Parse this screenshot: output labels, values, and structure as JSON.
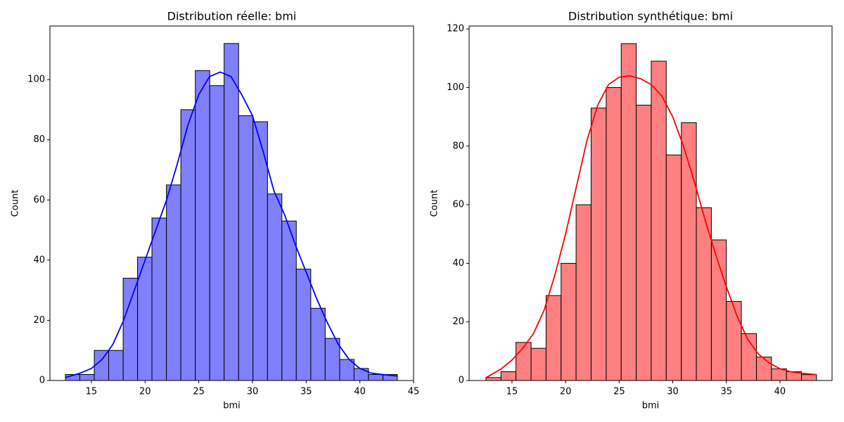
{
  "chart_data": [
    {
      "type": "histogram",
      "title": "Distribution réelle: bmi",
      "xlabel": "bmi",
      "ylabel": "Count",
      "bins": [
        12.58,
        13.92,
        15.27,
        16.61,
        17.96,
        19.3,
        20.64,
        21.99,
        23.33,
        24.68,
        26.02,
        27.36,
        28.71,
        30.05,
        31.4,
        32.74,
        34.08,
        35.43,
        36.77,
        38.12,
        39.46,
        40.8,
        42.15,
        43.49
      ],
      "counts": [
        2,
        2,
        10,
        10,
        34,
        41,
        54,
        65,
        90,
        103,
        98,
        112,
        88,
        86,
        62,
        53,
        37,
        24,
        14,
        7,
        4,
        2,
        2
      ],
      "color": "#8080ff",
      "edgecolor": "#000000",
      "kde": {
        "color": "#0000ff",
        "x": [
          12.6,
          14,
          15,
          16,
          17,
          18,
          19,
          20,
          21,
          22,
          23,
          24,
          25,
          26,
          27,
          28,
          29,
          30,
          31,
          32,
          33,
          34,
          35,
          36,
          37,
          38,
          39,
          40,
          41,
          42,
          43.5
        ],
        "y": [
          1,
          2.5,
          4,
          7,
          12,
          20,
          30,
          40,
          50,
          60,
          72,
          85,
          95,
          101,
          102.5,
          101,
          95,
          88,
          76,
          63,
          55,
          45,
          36,
          27,
          19,
          12,
          7,
          4,
          2.5,
          2,
          1.5
        ]
      },
      "xlim": [
        11.14,
        45
      ],
      "xticks": [
        15,
        20,
        25,
        30,
        35,
        40,
        45
      ],
      "ylim": [
        0,
        117.8
      ],
      "yticks": [
        0,
        20,
        40,
        60,
        80,
        100
      ]
    },
    {
      "type": "histogram",
      "title": "Distribution synthétique: bmi",
      "xlabel": "bmi",
      "ylabel": "Count",
      "bins": [
        12.57,
        13.97,
        15.37,
        16.78,
        18.18,
        19.58,
        20.98,
        22.38,
        23.79,
        25.19,
        26.59,
        27.99,
        29.39,
        30.8,
        32.2,
        33.6,
        35.0,
        36.4,
        37.81,
        39.21,
        40.61,
        42.01,
        43.41
      ],
      "counts": [
        1,
        3,
        13,
        11,
        29,
        40,
        60,
        93,
        100,
        115,
        94,
        109,
        77,
        88,
        59,
        48,
        27,
        16,
        8,
        4,
        3,
        2
      ],
      "color": "#ff8080",
      "edgecolor": "#000000",
      "kde": {
        "color": "#ff0000",
        "x": [
          12.6,
          14,
          15,
          16,
          17,
          18,
          19,
          20,
          21,
          22,
          23,
          24,
          25,
          26,
          27,
          28,
          29,
          30,
          31,
          32,
          33,
          34,
          35,
          36,
          37,
          38,
          39,
          40,
          41,
          42,
          43.4
        ],
        "y": [
          1,
          4,
          7,
          11,
          16,
          24,
          36,
          50,
          66,
          82,
          94,
          101,
          103.5,
          104,
          103,
          101,
          97,
          90,
          80,
          68,
          55,
          43,
          32,
          22,
          14,
          9,
          6,
          4,
          3,
          2.5,
          2
        ]
      },
      "xlim": [
        11.0,
        44.86
      ],
      "xticks": [
        15,
        20,
        25,
        30,
        35,
        40
      ],
      "ylim": [
        0,
        121
      ],
      "yticks": [
        0,
        20,
        40,
        60,
        80,
        100,
        120
      ]
    }
  ]
}
